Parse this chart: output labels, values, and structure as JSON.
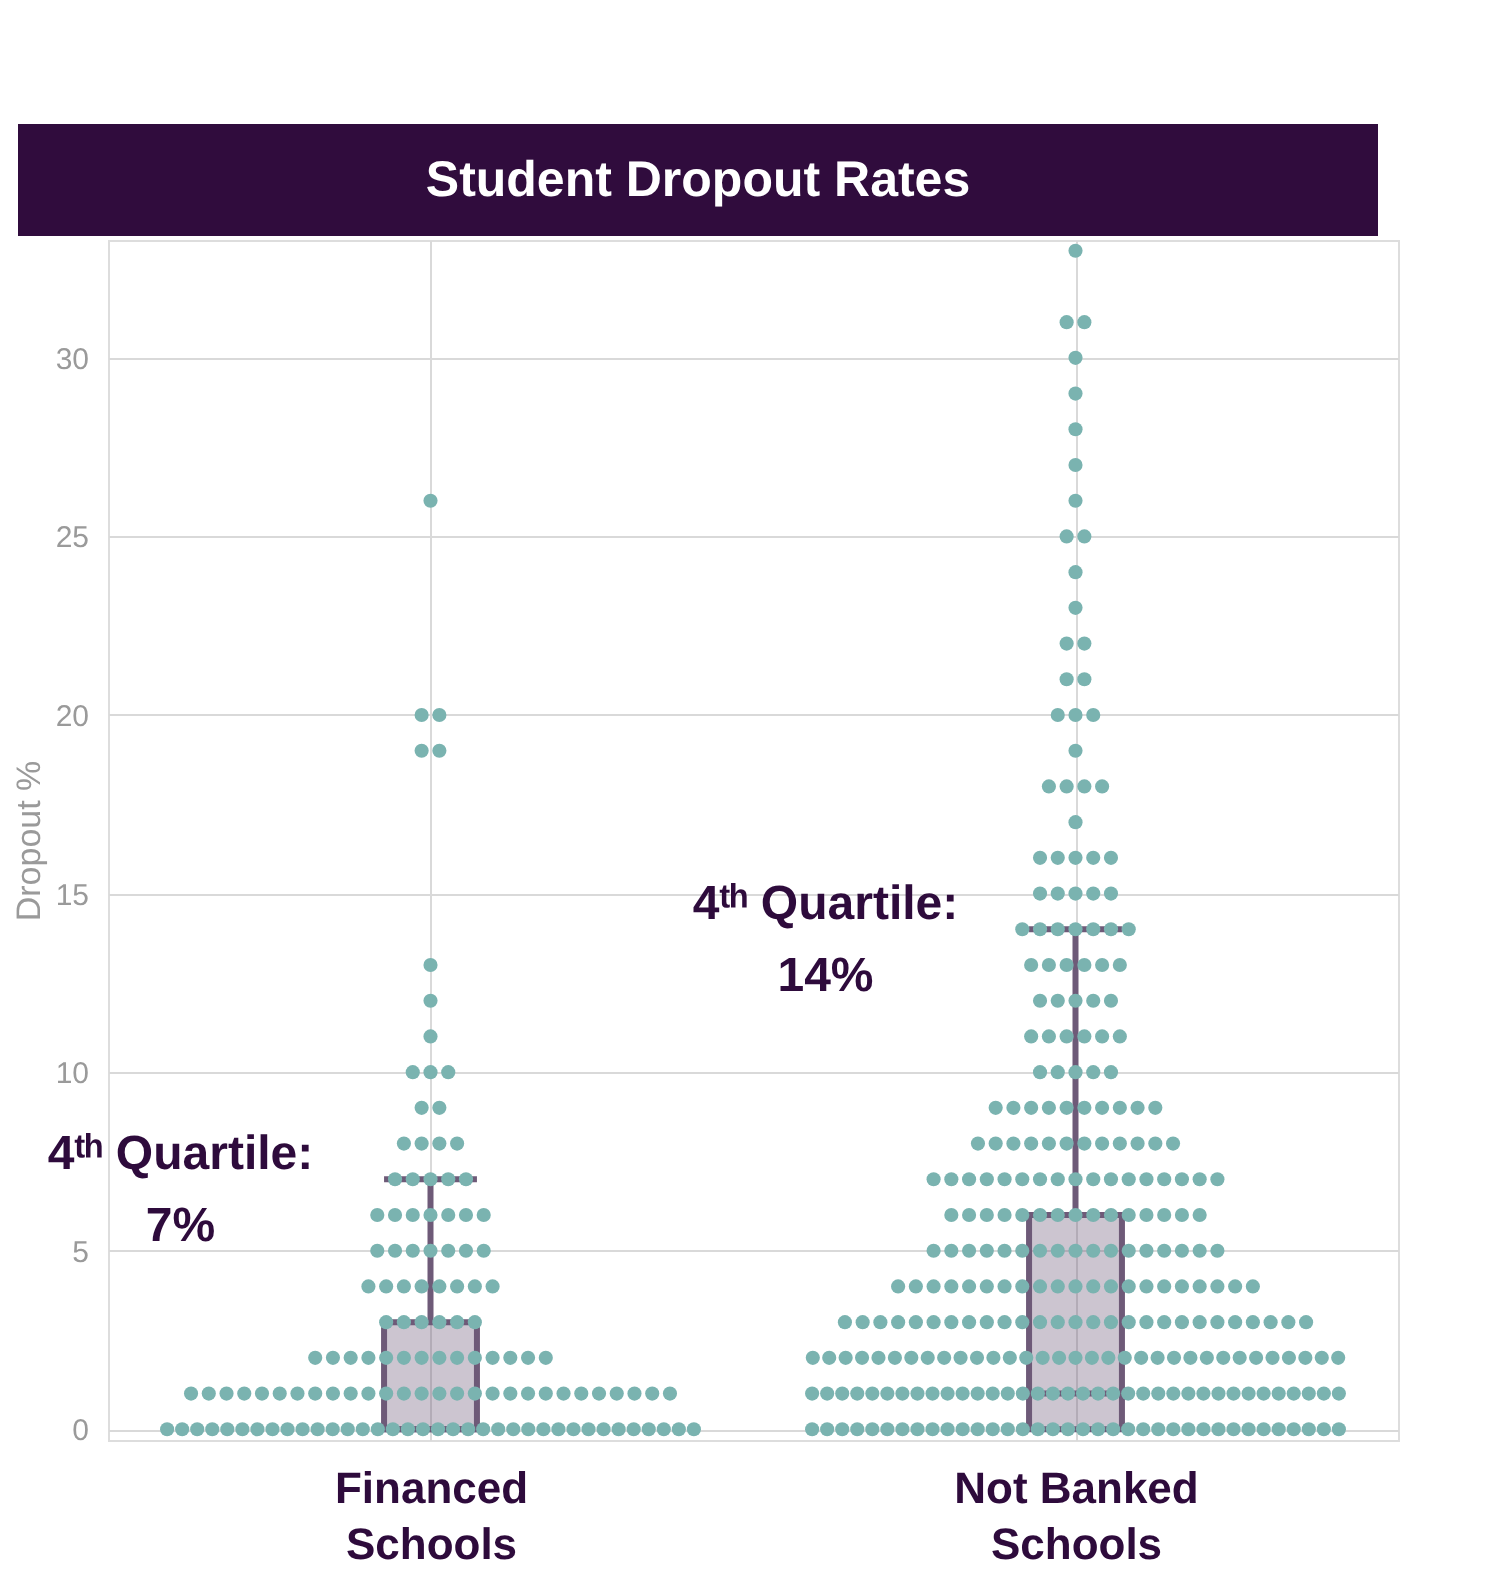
{
  "chart_data": {
    "type": "box",
    "title": "Student Dropout Rates",
    "ylabel": "Dropout %",
    "categories": [
      "Financed Schools",
      "Not Banked Schools"
    ],
    "boxes": [
      {
        "low": 0,
        "q1": 0,
        "median": 0,
        "q3": 3,
        "high": 7
      },
      {
        "low": 0,
        "q1": 0,
        "median": 1,
        "q3": 6,
        "high": 14
      }
    ],
    "color": "#6e5a78",
    "ylim": [
      -0.3,
      33.3
    ],
    "yticks": [
      0,
      5,
      10,
      15,
      20,
      25,
      30
    ],
    "grid": true,
    "annotations": [
      {
        "text": "4ᵗʰ Quartile: 7%",
        "x": "Financed Schools",
        "y": 7
      },
      {
        "text": "4ᵗʰ Quartile: 14%",
        "x": "Not Banked Schools",
        "y": 14
      }
    ],
    "series": [
      {
        "type": "scatter",
        "color": "#7ab3b0",
        "x": [
          "Financed Schools",
          "Financed Schools",
          "Financed Schools",
          "Financed Schools",
          "Financed Schools",
          "Financed Schools",
          "Financed Schools",
          "Financed Schools",
          "Financed Schools",
          "Financed Schools",
          "Financed Schools",
          "Financed Schools",
          "Financed Schools",
          "Financed Schools",
          "Financed Schools",
          "Financed Schools",
          "Financed Schools",
          "Financed Schools",
          "Financed Schools",
          "Financed Schools",
          "Financed Schools",
          "Financed Schools",
          "Financed Schools",
          "Financed Schools",
          "Financed Schools",
          "Financed Schools",
          "Financed Schools",
          "Financed Schools",
          "Financed Schools",
          "Financed Schools",
          "Financed Schools",
          "Financed Schools",
          "Financed Schools",
          "Financed Schools",
          "Financed Schools",
          "Financed Schools",
          "Financed Schools",
          "Financed Schools",
          "Financed Schools",
          "Financed Schools",
          "Financed Schools",
          "Financed Schools",
          "Financed Schools",
          "Financed Schools",
          "Financed Schools",
          "Financed Schools",
          "Financed Schools",
          "Financed Schools",
          "Financed Schools",
          "Financed Schools",
          "Financed Schools",
          "Financed Schools",
          "Financed Schools",
          "Financed Schools",
          "Financed Schools",
          "Financed Schools",
          "Financed Schools",
          "Financed Schools",
          "Financed Schools",
          "Financed Schools",
          "Financed Schools",
          "Financed Schools",
          "Financed Schools",
          "Financed Schools",
          "Financed Schools",
          "Financed Schools",
          "Financed Schools",
          "Financed Schools",
          "Financed Schools",
          "Financed Schools",
          "Financed Schools",
          "Financed Schools",
          "Financed Schools",
          "Financed Schools",
          "Financed Schools",
          "Financed Schools",
          "Financed Schools",
          "Financed Schools",
          "Financed Schools",
          "Financed Schools",
          "Financed Schools",
          "Financed Schools",
          "Financed Schools",
          "Financed Schools",
          "Financed Schools",
          "Financed Schools",
          "Financed Schools",
          "Financed Schools",
          "Financed Schools",
          "Financed Schools",
          "Financed Schools",
          "Financed Schools",
          "Financed Schools",
          "Financed Schools",
          "Financed Schools",
          "Financed Schools",
          "Financed Schools",
          "Financed Schools",
          "Financed Schools",
          "Financed Schools",
          "Financed Schools",
          "Financed Schools",
          "Financed Schools",
          "Financed Schools",
          "Financed Schools",
          "Financed Schools",
          "Financed Schools",
          "Financed Schools",
          "Financed Schools",
          "Financed Schools",
          "Financed Schools",
          "Financed Schools",
          "Financed Schools",
          "Financed Schools",
          "Financed Schools",
          "Financed Schools",
          "Financed Schools",
          "Financed Schools",
          "Financed Schools",
          "Financed Schools",
          "Financed Schools",
          "Financed Schools",
          "Financed Schools",
          "Financed Schools",
          "Financed Schools",
          "Financed Schools",
          "Financed Schools",
          "Financed Schools"
        ],
        "values": [
          0,
          0,
          0,
          0,
          0,
          0,
          0,
          0,
          0,
          0,
          0,
          0,
          0,
          0,
          0,
          0,
          0,
          0,
          0,
          0,
          0,
          0,
          0,
          0,
          0,
          0,
          0,
          0,
          0,
          0,
          0,
          0,
          0,
          0,
          0,
          0,
          1,
          1,
          1,
          1,
          1,
          1,
          1,
          1,
          1,
          1,
          1,
          1,
          1,
          1,
          1,
          1,
          1,
          1,
          1,
          1,
          1,
          1,
          1,
          1,
          1,
          1,
          1,
          1,
          2,
          2,
          2,
          2,
          2,
          2,
          2,
          2,
          2,
          2,
          2,
          2,
          2,
          2,
          3,
          3,
          3,
          3,
          3,
          3,
          4,
          4,
          4,
          4,
          4,
          4,
          4,
          4,
          5,
          5,
          5,
          5,
          5,
          5,
          5,
          6,
          6,
          6,
          6,
          6,
          6,
          6,
          7,
          7,
          7,
          7,
          7,
          8,
          8,
          8,
          8,
          9,
          9,
          10,
          10,
          10,
          11,
          12,
          13,
          19,
          19,
          20,
          20,
          26
        ]
      },
      {
        "type": "scatter",
        "color": "#7ab3b0",
        "x": [
          "Not Banked Schools",
          "Not Banked Schools",
          "Not Banked Schools",
          "Not Banked Schools",
          "Not Banked Schools",
          "Not Banked Schools",
          "Not Banked Schools",
          "Not Banked Schools",
          "Not Banked Schools",
          "Not Banked Schools",
          "Not Banked Schools",
          "Not Banked Schools",
          "Not Banked Schools",
          "Not Banked Schools",
          "Not Banked Schools",
          "Not Banked Schools",
          "Not Banked Schools",
          "Not Banked Schools",
          "Not Banked Schools",
          "Not Banked Schools",
          "Not Banked Schools",
          "Not Banked Schools",
          "Not Banked Schools",
          "Not Banked Schools",
          "Not Banked Schools",
          "Not Banked Schools",
          "Not Banked Schools",
          "Not Banked Schools",
          "Not Banked Schools",
          "Not Banked Schools",
          "Not Banked Schools",
          "Not Banked Schools",
          "Not Banked Schools",
          "Not Banked Schools",
          "Not Banked Schools",
          "Not Banked Schools",
          "Not Banked Schools",
          "Not Banked Schools",
          "Not Banked Schools",
          "Not Banked Schools",
          "Not Banked Schools",
          "Not Banked Schools",
          "Not Banked Schools",
          "Not Banked Schools",
          "Not Banked Schools",
          "Not Banked Schools",
          "Not Banked Schools",
          "Not Banked Schools",
          "Not Banked Schools",
          "Not Banked Schools",
          "Not Banked Schools",
          "Not Banked Schools",
          "Not Banked Schools",
          "Not Banked Schools",
          "Not Banked Schools",
          "Not Banked Schools",
          "Not Banked Schools",
          "Not Banked Schools",
          "Not Banked Schools",
          "Not Banked Schools",
          "Not Banked Schools",
          "Not Banked Schools",
          "Not Banked Schools",
          "Not Banked Schools",
          "Not Banked Schools",
          "Not Banked Schools",
          "Not Banked Schools",
          "Not Banked Schools",
          "Not Banked Schools",
          "Not Banked Schools",
          "Not Banked Schools",
          "Not Banked Schools",
          "Not Banked Schools",
          "Not Banked Schools",
          "Not Banked Schools",
          "Not Banked Schools",
          "Not Banked Schools",
          "Not Banked Schools",
          "Not Banked Schools",
          "Not Banked Schools",
          "Not Banked Schools",
          "Not Banked Schools",
          "Not Banked Schools",
          "Not Banked Schools",
          "Not Banked Schools",
          "Not Banked Schools",
          "Not Banked Schools",
          "Not Banked Schools",
          "Not Banked Schools",
          "Not Banked Schools",
          "Not Banked Schools",
          "Not Banked Schools",
          "Not Banked Schools",
          "Not Banked Schools",
          "Not Banked Schools",
          "Not Banked Schools",
          "Not Banked Schools",
          "Not Banked Schools",
          "Not Banked Schools",
          "Not Banked Schools",
          "Not Banked Schools",
          "Not Banked Schools",
          "Not Banked Schools",
          "Not Banked Schools",
          "Not Banked Schools",
          "Not Banked Schools",
          "Not Banked Schools",
          "Not Banked Schools",
          "Not Banked Schools",
          "Not Banked Schools",
          "Not Banked Schools",
          "Not Banked Schools",
          "Not Banked Schools",
          "Not Banked Schools",
          "Not Banked Schools",
          "Not Banked Schools",
          "Not Banked Schools",
          "Not Banked Schools",
          "Not Banked Schools",
          "Not Banked Schools",
          "Not Banked Schools",
          "Not Banked Schools",
          "Not Banked Schools",
          "Not Banked Schools",
          "Not Banked Schools",
          "Not Banked Schools",
          "Not Banked Schools",
          "Not Banked Schools",
          "Not Banked Schools",
          "Not Banked Schools",
          "Not Banked Schools",
          "Not Banked Schools",
          "Not Banked Schools",
          "Not Banked Schools",
          "Not Banked Schools",
          "Not Banked Schools",
          "Not Banked Schools",
          "Not Banked Schools",
          "Not Banked Schools",
          "Not Banked Schools",
          "Not Banked Schools",
          "Not Banked Schools",
          "Not Banked Schools",
          "Not Banked Schools",
          "Not Banked Schools",
          "Not Banked Schools",
          "Not Banked Schools",
          "Not Banked Schools",
          "Not Banked Schools",
          "Not Banked Schools",
          "Not Banked Schools",
          "Not Banked Schools",
          "Not Banked Schools",
          "Not Banked Schools",
          "Not Banked Schools",
          "Not Banked Schools",
          "Not Banked Schools",
          "Not Banked Schools",
          "Not Banked Schools",
          "Not Banked Schools",
          "Not Banked Schools",
          "Not Banked Schools",
          "Not Banked Schools",
          "Not Banked Schools",
          "Not Banked Schools",
          "Not Banked Schools",
          "Not Banked Schools",
          "Not Banked Schools",
          "Not Banked Schools",
          "Not Banked Schools",
          "Not Banked Schools",
          "Not Banked Schools",
          "Not Banked Schools",
          "Not Banked Schools",
          "Not Banked Schools",
          "Not Banked Schools",
          "Not Banked Schools",
          "Not Banked Schools",
          "Not Banked Schools",
          "Not Banked Schools",
          "Not Banked Schools",
          "Not Banked Schools",
          "Not Banked Schools",
          "Not Banked Schools",
          "Not Banked Schools",
          "Not Banked Schools",
          "Not Banked Schools",
          "Not Banked Schools",
          "Not Banked Schools",
          "Not Banked Schools",
          "Not Banked Schools",
          "Not Banked Schools",
          "Not Banked Schools",
          "Not Banked Schools",
          "Not Banked Schools",
          "Not Banked Schools",
          "Not Banked Schools",
          "Not Banked Schools",
          "Not Banked Schools",
          "Not Banked Schools",
          "Not Banked Schools",
          "Not Banked Schools",
          "Not Banked Schools",
          "Not Banked Schools",
          "Not Banked Schools",
          "Not Banked Schools",
          "Not Banked Schools",
          "Not Banked Schools",
          "Not Banked Schools",
          "Not Banked Schools",
          "Not Banked Schools",
          "Not Banked Schools",
          "Not Banked Schools",
          "Not Banked Schools",
          "Not Banked Schools",
          "Not Banked Schools",
          "Not Banked Schools",
          "Not Banked Schools",
          "Not Banked Schools",
          "Not Banked Schools",
          "Not Banked Schools",
          "Not Banked Schools",
          "Not Banked Schools",
          "Not Banked Schools",
          "Not Banked Schools",
          "Not Banked Schools",
          "Not Banked Schools",
          "Not Banked Schools",
          "Not Banked Schools",
          "Not Banked Schools",
          "Not Banked Schools",
          "Not Banked Schools",
          "Not Banked Schools",
          "Not Banked Schools",
          "Not Banked Schools",
          "Not Banked Schools",
          "Not Banked Schools",
          "Not Banked Schools",
          "Not Banked Schools",
          "Not Banked Schools",
          "Not Banked Schools",
          "Not Banked Schools",
          "Not Banked Schools",
          "Not Banked Schools",
          "Not Banked Schools",
          "Not Banked Schools",
          "Not Banked Schools",
          "Not Banked Schools",
          "Not Banked Schools",
          "Not Banked Schools",
          "Not Banked Schools",
          "Not Banked Schools",
          "Not Banked Schools",
          "Not Banked Schools",
          "Not Banked Schools",
          "Not Banked Schools",
          "Not Banked Schools",
          "Not Banked Schools",
          "Not Banked Schools",
          "Not Banked Schools",
          "Not Banked Schools",
          "Not Banked Schools",
          "Not Banked Schools",
          "Not Banked Schools",
          "Not Banked Schools",
          "Not Banked Schools",
          "Not Banked Schools",
          "Not Banked Schools",
          "Not Banked Schools",
          "Not Banked Schools",
          "Not Banked Schools",
          "Not Banked Schools",
          "Not Banked Schools",
          "Not Banked Schools",
          "Not Banked Schools",
          "Not Banked Schools",
          "Not Banked Schools",
          "Not Banked Schools",
          "Not Banked Schools",
          "Not Banked Schools",
          "Not Banked Schools",
          "Not Banked Schools",
          "Not Banked Schools",
          "Not Banked Schools",
          "Not Banked Schools",
          "Not Banked Schools",
          "Not Banked Schools",
          "Not Banked Schools"
        ],
        "values": [
          0,
          0,
          0,
          0,
          0,
          0,
          0,
          0,
          0,
          0,
          0,
          0,
          0,
          0,
          0,
          0,
          0,
          0,
          0,
          0,
          0,
          0,
          0,
          0,
          0,
          0,
          0,
          0,
          0,
          0,
          0,
          0,
          0,
          0,
          0,
          0,
          1,
          1,
          1,
          1,
          1,
          1,
          1,
          1,
          1,
          1,
          1,
          1,
          1,
          1,
          1,
          1,
          1,
          1,
          1,
          1,
          1,
          1,
          1,
          1,
          1,
          1,
          1,
          1,
          1,
          1,
          1,
          1,
          1,
          1,
          1,
          1,
          2,
          2,
          2,
          2,
          2,
          2,
          2,
          2,
          2,
          2,
          2,
          2,
          2,
          2,
          2,
          2,
          2,
          2,
          2,
          2,
          2,
          2,
          2,
          2,
          2,
          2,
          2,
          2,
          2,
          2,
          2,
          2,
          2,
          3,
          3,
          3,
          3,
          3,
          3,
          3,
          3,
          3,
          3,
          3,
          3,
          3,
          3,
          3,
          3,
          3,
          3,
          3,
          3,
          3,
          3,
          3,
          3,
          3,
          3,
          3,
          4,
          4,
          4,
          4,
          4,
          4,
          4,
          4,
          4,
          4,
          4,
          4,
          4,
          4,
          4,
          4,
          4,
          4,
          4,
          4,
          4,
          5,
          5,
          5,
          5,
          5,
          5,
          5,
          5,
          5,
          5,
          5,
          5,
          5,
          5,
          5,
          5,
          5,
          6,
          6,
          6,
          6,
          6,
          6,
          6,
          6,
          6,
          6,
          6,
          6,
          6,
          6,
          6,
          7,
          7,
          7,
          7,
          7,
          7,
          7,
          7,
          7,
          7,
          7,
          7,
          7,
          7,
          7,
          7,
          7,
          8,
          8,
          8,
          8,
          8,
          8,
          8,
          8,
          8,
          8,
          8,
          8,
          9,
          9,
          9,
          9,
          9,
          9,
          9,
          9,
          9,
          9,
          10,
          10,
          10,
          10,
          10,
          11,
          11,
          11,
          11,
          11,
          11,
          12,
          12,
          12,
          12,
          12,
          13,
          13,
          13,
          13,
          13,
          13,
          14,
          14,
          14,
          14,
          14,
          14,
          14,
          15,
          15,
          15,
          15,
          15,
          16,
          16,
          16,
          16,
          16,
          17,
          18,
          18,
          18,
          18,
          19,
          20,
          20,
          20,
          21,
          21,
          22,
          22,
          23,
          24,
          25,
          25,
          26,
          27,
          28,
          29,
          30,
          31,
          31,
          33
        ]
      }
    ]
  }
}
